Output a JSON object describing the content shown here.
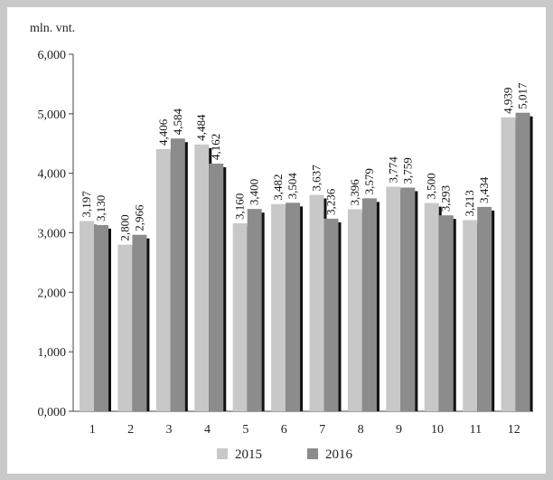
{
  "chart_data": {
    "type": "bar",
    "unit_label": "mln. vnt.",
    "categories": [
      "1",
      "2",
      "3",
      "4",
      "5",
      "6",
      "7",
      "8",
      "9",
      "10",
      "11",
      "12"
    ],
    "series": [
      {
        "name": "2015",
        "color": "#c8c8c8",
        "values": [
          3197,
          2800,
          4406,
          4484,
          3160,
          3482,
          3637,
          3396,
          3774,
          3500,
          3213,
          4939
        ]
      },
      {
        "name": "2016",
        "color": "#8c8c8c",
        "values": [
          3130,
          2966,
          4584,
          4162,
          3400,
          3504,
          3236,
          3579,
          3759,
          3293,
          3434,
          5017
        ]
      }
    ],
    "data_labels": [
      [
        "3,197",
        "2,800",
        "4,406",
        "4,484",
        "3,160",
        "3,482",
        "3,637",
        "3,396",
        "3,774",
        "3,500",
        "3,213",
        "4,939"
      ],
      [
        "3,130",
        "2,966",
        "4,584",
        "4,162",
        "3,400",
        "3,504",
        "3,236",
        "3,579",
        "3,759",
        "3,293",
        "3,434",
        "5,017"
      ]
    ],
    "y_ticks": [
      "0,000",
      "1,000",
      "2,000",
      "3,000",
      "4,000",
      "5,000",
      "6,000"
    ],
    "ylim": [
      0,
      6000
    ],
    "shadow_color": "#111111",
    "grid": false,
    "legend_position": "bottom"
  }
}
